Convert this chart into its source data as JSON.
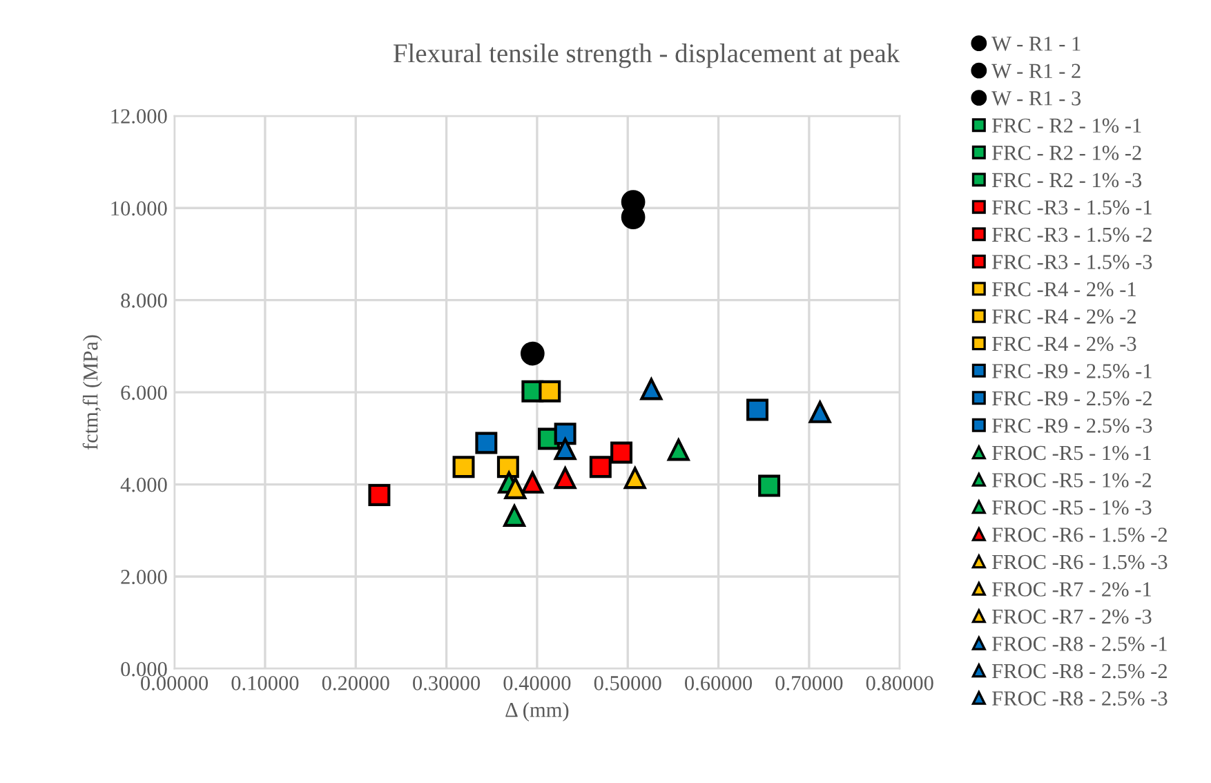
{
  "chart_data": {
    "type": "scatter",
    "title": "Flexural tensile strength - displacement at peak",
    "xlabel": "Δ (mm)",
    "ylabel": "fctm,fl (MPa)",
    "xlim": [
      0,
      0.8
    ],
    "xticks": [
      {
        "value": 0,
        "label": "0.00000"
      },
      {
        "value": 0.1,
        "label": "0.10000"
      },
      {
        "value": 0.2,
        "label": "0.20000"
      },
      {
        "value": 0.3,
        "label": "0.30000"
      },
      {
        "value": 0.4,
        "label": "0.40000"
      },
      {
        "value": 0.5,
        "label": "0.50000"
      },
      {
        "value": 0.6,
        "label": "0.60000"
      },
      {
        "value": 0.7,
        "label": "0.70000"
      },
      {
        "value": 0.8,
        "label": "0.80000"
      }
    ],
    "ylim": [
      0,
      12
    ],
    "yticks": [
      {
        "value": 0,
        "label": "0.000"
      },
      {
        "value": 2,
        "label": "2.000"
      },
      {
        "value": 4,
        "label": "4.000"
      },
      {
        "value": 6,
        "label": "6.000"
      },
      {
        "value": 8,
        "label": "8.000"
      },
      {
        "value": 10,
        "label": "10.000"
      },
      {
        "value": 12,
        "label": "12.000"
      }
    ],
    "grid": true,
    "legend": "right",
    "series": [
      {
        "name": "W - R1 - 1",
        "color": "#000000",
        "marker": "circle",
        "x": [
          0.506
        ],
        "values": [
          10.13
        ]
      },
      {
        "name": "W - R1 - 2",
        "color": "#000000",
        "marker": "circle",
        "x": [
          0.506
        ],
        "values": [
          9.8
        ]
      },
      {
        "name": "W - R1 - 3",
        "color": "#000000",
        "marker": "circle",
        "x": [
          0.395
        ],
        "values": [
          6.84
        ]
      },
      {
        "name": "FRC - R2 - 1% -1",
        "color": "#00b050",
        "marker": "square",
        "x": [
          0.395
        ],
        "values": [
          6.02
        ]
      },
      {
        "name": "FRC - R2 - 1% -2",
        "color": "#00b050",
        "marker": "square",
        "x": [
          0.413
        ],
        "values": [
          4.99
        ]
      },
      {
        "name": "FRC - R2 - 1% -3",
        "color": "#00b050",
        "marker": "square",
        "x": [
          0.656
        ],
        "values": [
          3.97
        ]
      },
      {
        "name": "FRC -R3 - 1.5% -1",
        "color": "#ff0000",
        "marker": "square",
        "x": [
          0.226
        ],
        "values": [
          3.77
        ]
      },
      {
        "name": "FRC -R3 - 1.5% -2",
        "color": "#ff0000",
        "marker": "square",
        "x": [
          0.47
        ],
        "values": [
          4.38
        ]
      },
      {
        "name": "FRC -R3 - 1.5% -3",
        "color": "#ff0000",
        "marker": "square",
        "x": [
          0.493
        ],
        "values": [
          4.69
        ]
      },
      {
        "name": "FRC -R4 - 2% -1",
        "color": "#ffc000",
        "marker": "square",
        "x": [
          0.414
        ],
        "values": [
          6.02
        ]
      },
      {
        "name": "FRC -R4 - 2% -2",
        "color": "#ffc000",
        "marker": "square",
        "x": [
          0.319
        ],
        "values": [
          4.38
        ]
      },
      {
        "name": "FRC -R4 - 2% -3",
        "color": "#ffc000",
        "marker": "square",
        "x": [
          0.368
        ],
        "values": [
          4.38
        ]
      },
      {
        "name": "FRC -R9 - 2.5% -1",
        "color": "#0070c0",
        "marker": "square",
        "x": [
          0.344
        ],
        "values": [
          4.9
        ]
      },
      {
        "name": "FRC -R9 - 2.5% -2",
        "color": "#0070c0",
        "marker": "square",
        "x": [
          0.431
        ],
        "values": [
          5.1
        ]
      },
      {
        "name": "FRC -R9 - 2.5% -3",
        "color": "#0070c0",
        "marker": "square",
        "x": [
          0.643
        ],
        "values": [
          5.62
        ]
      },
      {
        "name": "FROC -R5 - 1% -1",
        "color": "#00b050",
        "marker": "triangle",
        "x": [
          0.369
        ],
        "values": [
          4.04
        ]
      },
      {
        "name": "FROC -R5 - 1% -2",
        "color": "#00b050",
        "marker": "triangle",
        "x": [
          0.375
        ],
        "values": [
          3.32
        ]
      },
      {
        "name": "FROC -R5 - 1% -3",
        "color": "#00b050",
        "marker": "triangle",
        "x": [
          0.556
        ],
        "values": [
          4.75
        ]
      },
      {
        "color": "#ff0000",
        "marker": "triangle",
        "x": [
          0.395
        ],
        "values": [
          4.04
        ]
      },
      {
        "name": "FROC -R6 - 1.5% -2",
        "color": "#ff0000",
        "marker": "triangle",
        "x": [
          0.431
        ],
        "values": [
          4.14
        ]
      },
      {
        "name": "FROC -R6 - 1.5% -3",
        "color": "#ffc000",
        "marker": "triangle",
        "x": [
          0.376
        ],
        "values": [
          3.92
        ]
      },
      {
        "name": "FROC -R7 - 2% -1",
        "color": "#ffc000",
        "marker": "triangle",
        "x": [
          0.508
        ],
        "values": [
          4.14
        ]
      },
      {
        "name": "FROC -R7 - 2% -3",
        "color": "#ffc000",
        "marker": "triangle",
        "x": [
          null
        ],
        "values": [
          null
        ]
      },
      {
        "name": "FROC -R8 - 2.5% -1",
        "color": "#0070c0",
        "marker": "triangle",
        "x": [
          0.526
        ],
        "values": [
          6.07
        ]
      },
      {
        "name": "FROC -R8 - 2.5% -2",
        "color": "#0070c0",
        "marker": "triangle",
        "x": [
          0.712
        ],
        "values": [
          5.57
        ]
      },
      {
        "name": "FROC -R8 - 2.5% -3",
        "color": "#0070c0",
        "marker": "triangle",
        "x": [
          0.431
        ],
        "values": [
          4.77
        ]
      }
    ]
  }
}
